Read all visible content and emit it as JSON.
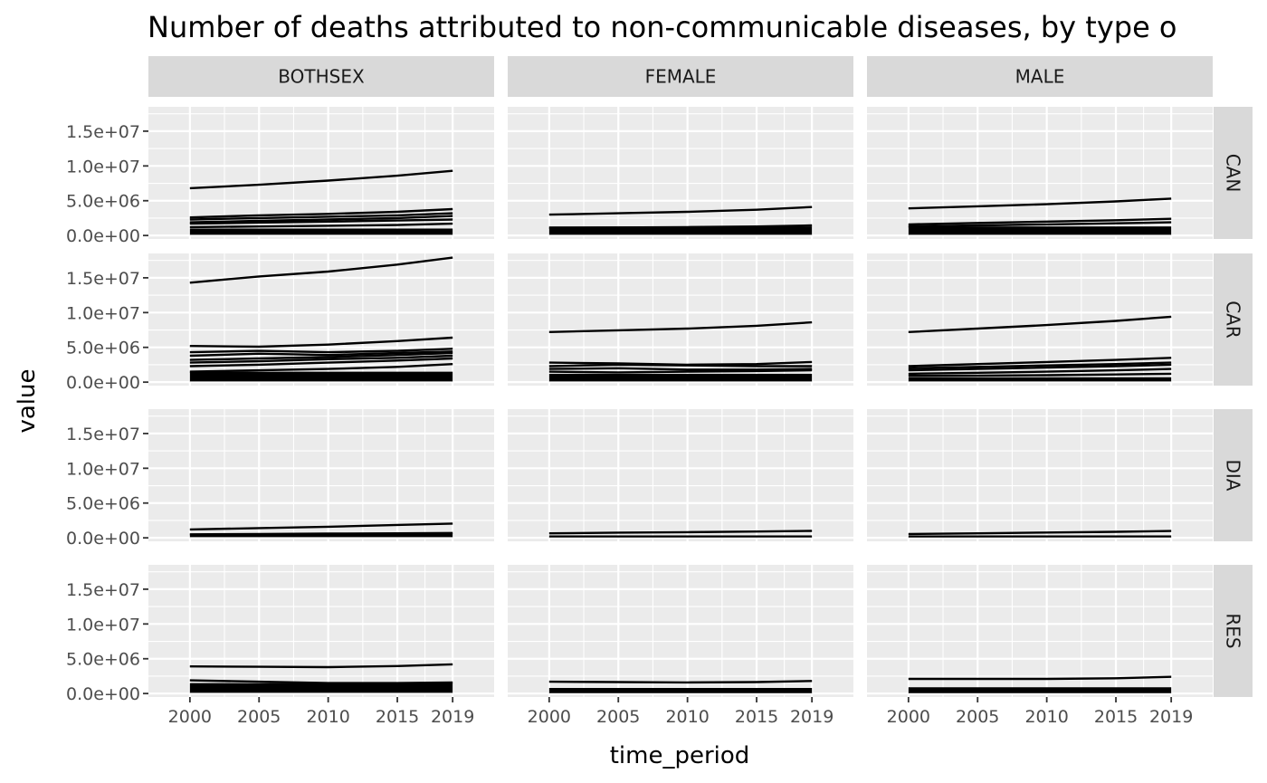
{
  "chart_data": {
    "type": "line",
    "title": "Number of deaths attributed to non-communicable diseases, by type o",
    "xlabel": "time_period",
    "ylabel": "value",
    "x_ticks": [
      "2000",
      "2005",
      "2010",
      "2015",
      "2019"
    ],
    "y_ticks": [
      "0.0e+00",
      "5.0e+06",
      "1.0e+07",
      "1.5e+07"
    ],
    "xlim": [
      1997,
      2022
    ],
    "ylim": [
      -500000,
      18500000
    ],
    "x": [
      2000,
      2005,
      2010,
      2015,
      2019
    ],
    "grid": true,
    "facet_cols": [
      "BOTHSEX",
      "FEMALE",
      "MALE"
    ],
    "facet_rows": [
      "CAN",
      "CAR",
      "DIA",
      "RES"
    ],
    "panels": [
      {
        "col": "BOTHSEX",
        "row": "CAN",
        "band": [
          100000,
          1000000
        ],
        "series": [
          {
            "values": [
              6800000,
              7300000,
              7900000,
              8600000,
              9300000
            ]
          },
          {
            "values": [
              2600000,
              2900000,
              3100000,
              3400000,
              3800000
            ]
          },
          {
            "values": [
              2300000,
              2500000,
              2700000,
              2900000,
              3200000
            ]
          },
          {
            "values": [
              1900000,
              2100000,
              2300000,
              2500000,
              2800000
            ]
          },
          {
            "values": [
              1700000,
              1850000,
              2000000,
              2150000,
              2300000
            ]
          },
          {
            "values": [
              1200000,
              1300000,
              1400000,
              1500000,
              1700000
            ]
          }
        ]
      },
      {
        "col": "FEMALE",
        "row": "CAN",
        "band": [
          100000,
          1300000
        ],
        "series": [
          {
            "values": [
              3000000,
              3200000,
              3400000,
              3700000,
              4100000
            ]
          },
          {
            "values": [
              1100000,
              1150000,
              1200000,
              1300000,
              1450000
            ]
          }
        ]
      },
      {
        "col": "MALE",
        "row": "CAN",
        "band": [
          100000,
          1300000
        ],
        "series": [
          {
            "values": [
              3900000,
              4200000,
              4500000,
              4900000,
              5300000
            ]
          },
          {
            "values": [
              1600000,
              1800000,
              2000000,
              2200000,
              2400000
            ]
          },
          {
            "values": [
              1300000,
              1450000,
              1600000,
              1750000,
              1900000
            ]
          }
        ]
      },
      {
        "col": "BOTHSEX",
        "row": "CAR",
        "band": [
          100000,
          1500000
        ],
        "series": [
          {
            "values": [
              14300000,
              15200000,
              15900000,
              16900000,
              17900000
            ]
          },
          {
            "values": [
              5200000,
              5100000,
              5400000,
              5900000,
              6400000
            ]
          },
          {
            "values": [
              4300000,
              4500000,
              4300000,
              4500000,
              4800000
            ]
          },
          {
            "values": [
              3800000,
              4100000,
              3900000,
              4200000,
              4400000
            ]
          },
          {
            "values": [
              3200000,
              3400000,
              3600000,
              3900000,
              4200000
            ]
          },
          {
            "values": [
              2800000,
              3000000,
              3300000,
              3500000,
              3800000
            ]
          },
          {
            "values": [
              2300000,
              2500000,
              2800000,
              3100000,
              3400000
            ]
          },
          {
            "values": [
              1500000,
              1700000,
              1900000,
              2200000,
              2600000
            ]
          }
        ]
      },
      {
        "col": "FEMALE",
        "row": "CAR",
        "band": [
          100000,
          1200000
        ],
        "series": [
          {
            "values": [
              7200000,
              7450000,
              7700000,
              8100000,
              8600000
            ]
          },
          {
            "values": [
              2800000,
              2700000,
              2500000,
              2600000,
              2900000
            ]
          },
          {
            "values": [
              2300000,
              2500000,
              2400000,
              2300000,
              2300000
            ]
          },
          {
            "values": [
              1900000,
              2000000,
              1800000,
              1800000,
              1900000
            ]
          },
          {
            "values": [
              1500000,
              1400000,
              1500000,
              1600000,
              1700000
            ]
          }
        ]
      },
      {
        "col": "MALE",
        "row": "CAR",
        "band": [
          100000,
          700000
        ],
        "series": [
          {
            "values": [
              7200000,
              7700000,
              8200000,
              8800000,
              9400000
            ]
          },
          {
            "values": [
              2300000,
              2600000,
              2900000,
              3200000,
              3500000
            ]
          },
          {
            "values": [
              2000000,
              2200000,
              2400000,
              2600000,
              2800000
            ]
          },
          {
            "values": [
              1700000,
              1900000,
              2100000,
              2300000,
              2500000
            ]
          },
          {
            "values": [
              1200000,
              1350000,
              1500000,
              1700000,
              1900000
            ]
          },
          {
            "values": [
              900000,
              950000,
              1000000,
              1100000,
              1200000
            ]
          }
        ]
      },
      {
        "col": "BOTHSEX",
        "row": "DIA",
        "band": [
          100000,
          600000
        ],
        "series": [
          {
            "values": [
              1200000,
              1400000,
              1600000,
              1850000,
              2050000
            ]
          },
          {
            "values": [
              500000,
              550000,
              600000,
              650000,
              700000
            ]
          }
        ]
      },
      {
        "col": "FEMALE",
        "row": "DIA",
        "band": [
          50000,
          350000
        ],
        "series": [
          {
            "values": [
              650000,
              750000,
              820000,
              900000,
              1000000
            ]
          }
        ]
      },
      {
        "col": "MALE",
        "row": "DIA",
        "band": [
          50000,
          350000
        ],
        "series": [
          {
            "values": [
              550000,
              650000,
              760000,
              870000,
              980000
            ]
          }
        ]
      },
      {
        "col": "BOTHSEX",
        "row": "RES",
        "band": [
          100000,
          1500000
        ],
        "series": [
          {
            "values": [
              3900000,
              3850000,
              3800000,
              3950000,
              4200000
            ]
          },
          {
            "values": [
              1900000,
              1700000,
              1500000,
              1500000,
              1600000
            ]
          }
        ]
      },
      {
        "col": "FEMALE",
        "row": "RES",
        "band": [
          50000,
          800000
        ],
        "series": [
          {
            "values": [
              1700000,
              1650000,
              1600000,
              1650000,
              1800000
            ]
          }
        ]
      },
      {
        "col": "MALE",
        "row": "RES",
        "band": [
          50000,
          900000
        ],
        "series": [
          {
            "values": [
              2100000,
              2100000,
              2100000,
              2200000,
              2400000
            ]
          }
        ]
      }
    ]
  }
}
